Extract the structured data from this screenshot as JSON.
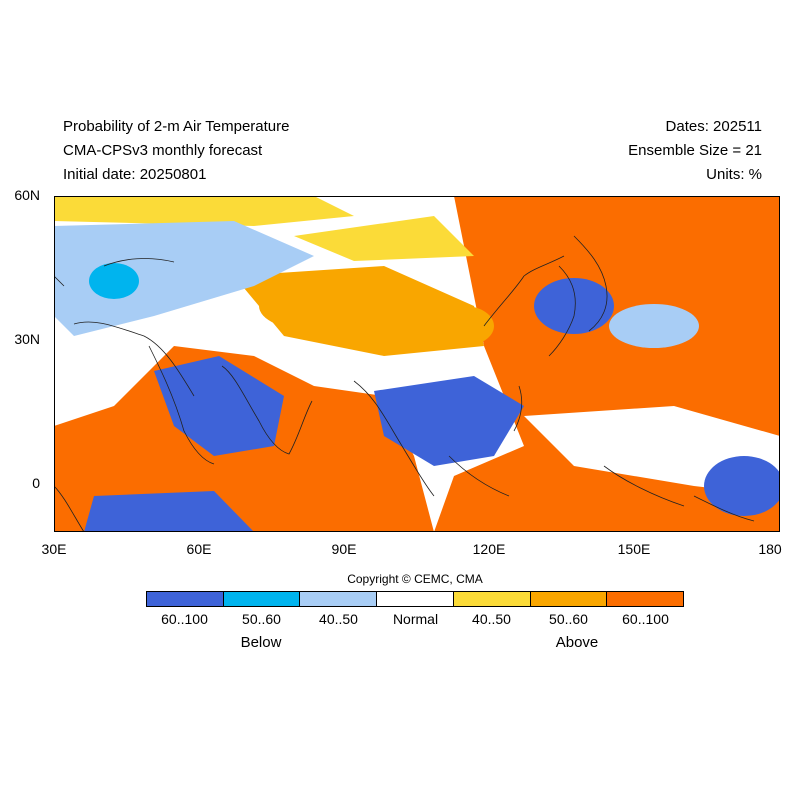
{
  "header": {
    "title_line1": "Probability of 2-m Air Temperature",
    "title_line2": "CMA-CPSv3 monthly forecast",
    "title_line3": "Initial date: 20250801",
    "dates": "Dates: 202511",
    "ensemble": "Ensemble Size = 21",
    "units": "Units: %"
  },
  "map": {
    "lat_labels": [
      "60N",
      "30N",
      "0"
    ],
    "lon_labels": [
      "30E",
      "60E",
      "90E",
      "120E",
      "150E",
      "180"
    ],
    "extent": {
      "lon": [
        30,
        180
      ],
      "lat": [
        -10,
        60
      ]
    }
  },
  "copyright": "Copyright © CEMC, CMA",
  "legend": {
    "bins": [
      {
        "label": "60..100",
        "color": "#3e63d8"
      },
      {
        "label": "50..60",
        "color": "#00b4ee"
      },
      {
        "label": "40..50",
        "color": "#a8cdf5"
      },
      {
        "label": "Normal",
        "color": "#ffffff"
      },
      {
        "label": "40..50",
        "color": "#fbdb38"
      },
      {
        "label": "50..60",
        "color": "#f9a600"
      },
      {
        "label": "60..100",
        "color": "#fb6d00"
      }
    ],
    "below_label": "Below",
    "above_label": "Above"
  }
}
